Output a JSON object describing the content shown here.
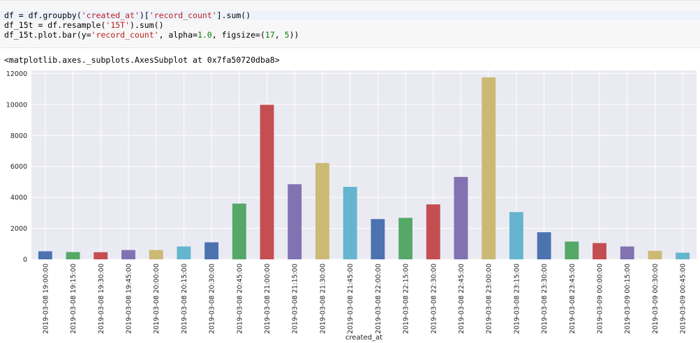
{
  "code": {
    "line1": {
      "a": "df = df.groupby(",
      "s1": "'created_at'",
      "b": ")[",
      "s2": "'record_count'",
      "c": "].sum()"
    },
    "line2": {
      "a": "df_15t = df.resample(",
      "s1": "'15T'",
      "b": ").sum()"
    },
    "line3": {
      "a": "df_15t.plot.bar(y=",
      "s1": "'record_count'",
      "b": ", alpha=",
      "n1": "1.0",
      "c": ", figsize=(",
      "n2": "17",
      "d": ", ",
      "n3": "5",
      "e": "))"
    }
  },
  "output_text": "<matplotlib.axes._subplots.AxesSubplot at 0x7fa50720dba8>",
  "chart_data": {
    "type": "bar",
    "title": "",
    "xlabel": "created_at",
    "ylabel": "",
    "ylim": [
      0,
      12200
    ],
    "yticks": [
      0,
      2000,
      4000,
      6000,
      8000,
      10000,
      12000
    ],
    "grid": true,
    "legend": false,
    "categories": [
      "2019-03-08 19:00:00",
      "2019-03-08 19:15:00",
      "2019-03-08 19:30:00",
      "2019-03-08 19:45:00",
      "2019-03-08 20:00:00",
      "2019-03-08 20:15:00",
      "2019-03-08 20:30:00",
      "2019-03-08 20:45:00",
      "2019-03-08 21:00:00",
      "2019-03-08 21:15:00",
      "2019-03-08 21:30:00",
      "2019-03-08 21:45:00",
      "2019-03-08 22:00:00",
      "2019-03-08 22:15:00",
      "2019-03-08 22:30:00",
      "2019-03-08 22:45:00",
      "2019-03-08 23:00:00",
      "2019-03-08 23:15:00",
      "2019-03-08 23:30:00",
      "2019-03-08 23:45:00",
      "2019-03-09 00:00:00",
      "2019-03-09 00:15:00",
      "2019-03-09 00:30:00",
      "2019-03-09 00:45:00"
    ],
    "values": [
      520,
      470,
      460,
      600,
      600,
      830,
      1100,
      3600,
      9980,
      4850,
      6220,
      4680,
      2600,
      2680,
      3550,
      5320,
      11750,
      3050,
      1750,
      1150,
      1050,
      830,
      550,
      430
    ],
    "colors": [
      "#4c72b0",
      "#55a868",
      "#c44e52",
      "#8172b2",
      "#ccb974",
      "#64b5cd"
    ],
    "background": "#eaeaf2",
    "gridcolor": "#ffffff"
  }
}
